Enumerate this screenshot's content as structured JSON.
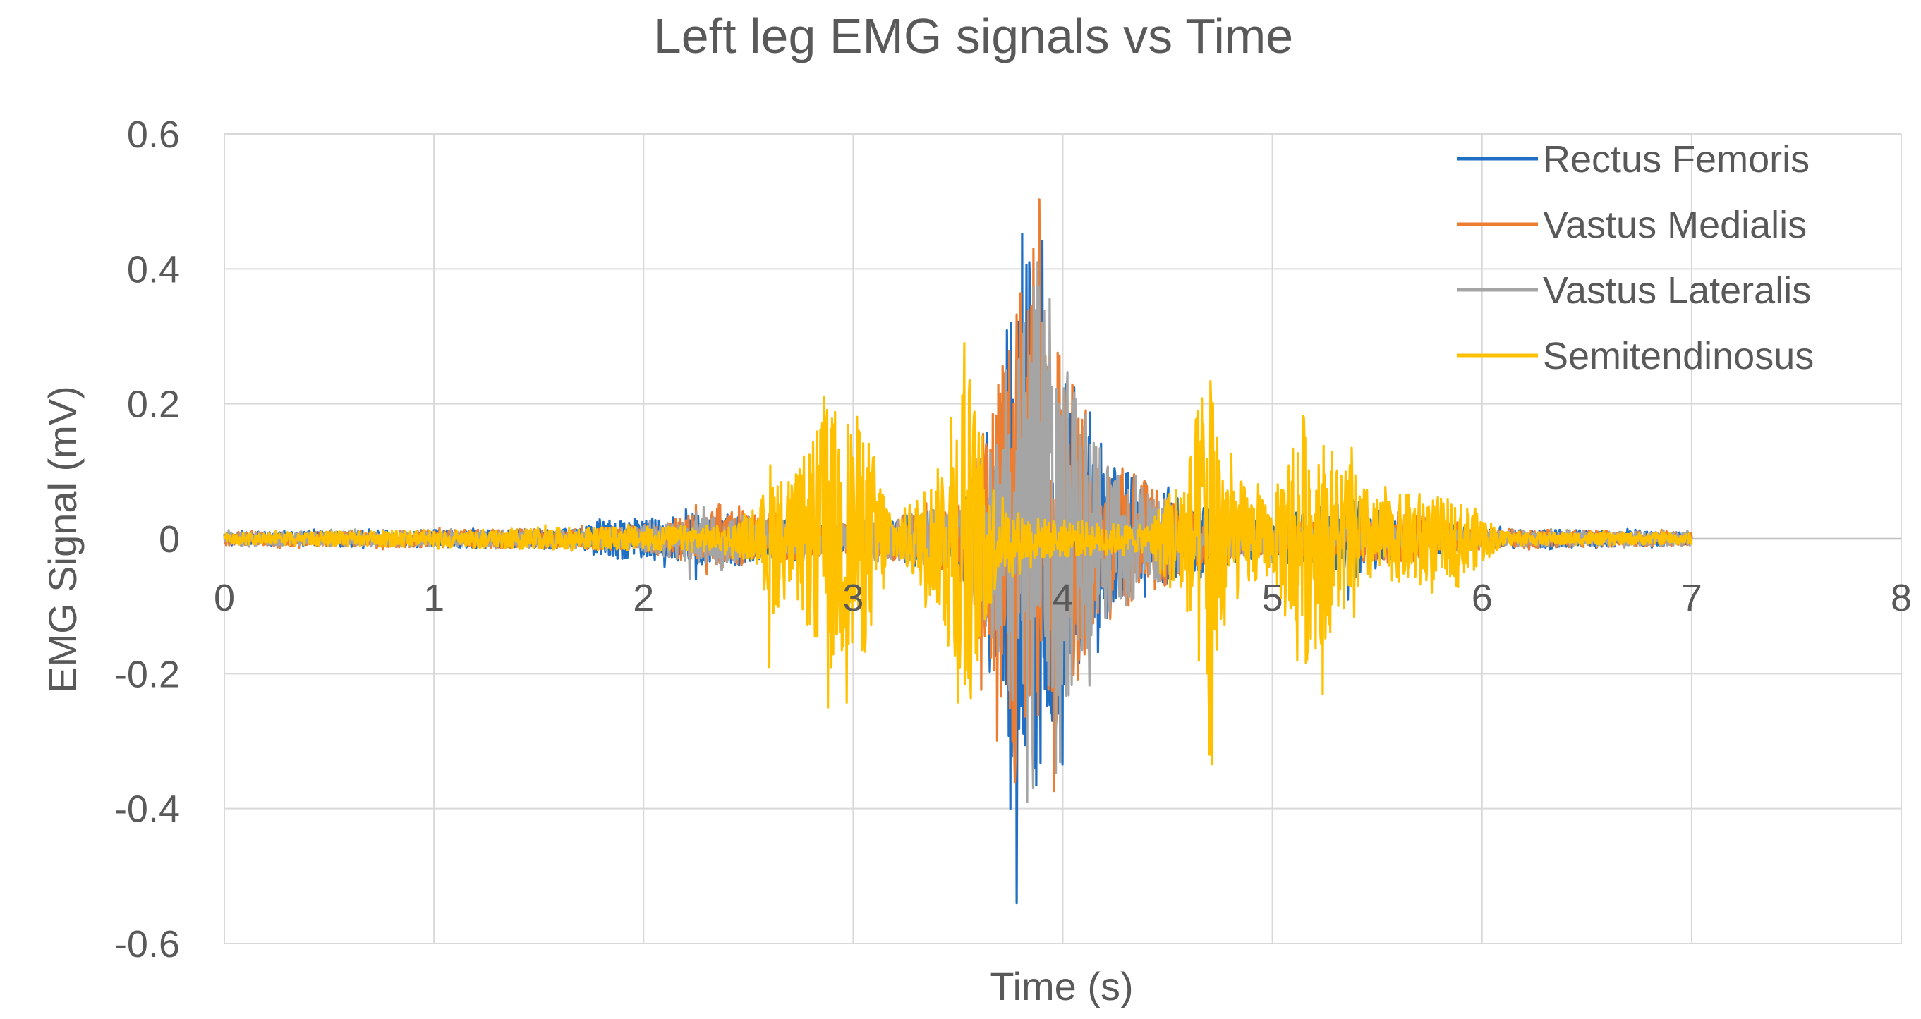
{
  "chart_data": {
    "type": "line",
    "title": "Left leg EMG signals vs Time",
    "xlabel": "Time (s)",
    "ylabel": "EMG Signal (mV)",
    "xlim": [
      0,
      8
    ],
    "ylim": [
      -0.6,
      0.6
    ],
    "x_ticks": [
      0,
      1,
      2,
      3,
      4,
      5,
      6,
      7,
      8
    ],
    "y_ticks": [
      0.6,
      0.4,
      0.2,
      0,
      -0.2,
      -0.4,
      -0.6
    ],
    "x_tick_labels": [
      "0",
      "1",
      "2",
      "3",
      "4",
      "5",
      "6",
      "7",
      "8"
    ],
    "y_tick_labels": [
      "0.6",
      "0.4",
      "0.2",
      "0",
      "-0.2",
      "-0.4",
      "-0.6"
    ],
    "grid": true,
    "legend_position": "top-right",
    "series": [
      {
        "name": "Rectus Femoris",
        "color": "#1f6fc5",
        "envelope": [
          [
            0,
            0.01
          ],
          [
            1.7,
            0.015
          ],
          [
            1.78,
            0.03
          ],
          [
            2.0,
            0.03
          ],
          [
            2.3,
            0.04
          ],
          [
            2.6,
            0.03
          ],
          [
            3.0,
            0.02
          ],
          [
            3.5,
            0.05
          ],
          [
            3.7,
            0.2
          ],
          [
            3.78,
            0.4
          ],
          [
            3.85,
            0.41
          ],
          [
            3.95,
            0.3
          ],
          [
            4.2,
            0.12
          ],
          [
            4.6,
            0.05
          ],
          [
            5.0,
            0.03
          ],
          [
            5.38,
            0.06
          ],
          [
            5.6,
            0.03
          ],
          [
            6.0,
            0.015
          ],
          [
            7.0,
            0.01
          ]
        ],
        "peaks": [
          [
            3.84,
            0.41
          ],
          [
            3.78,
            -0.54
          ],
          [
            3.75,
            -0.4
          ],
          [
            3.95,
            -0.27
          ],
          [
            5.38,
            0.06
          ],
          [
            5.36,
            -0.09
          ],
          [
            2.25,
            -0.06
          ]
        ]
      },
      {
        "name": "Vastus Medialis",
        "color": "#ed7d31",
        "envelope": [
          [
            0,
            0.01
          ],
          [
            1.7,
            0.015
          ],
          [
            2.0,
            0.02
          ],
          [
            2.3,
            0.04
          ],
          [
            2.6,
            0.04
          ],
          [
            3.0,
            0.02
          ],
          [
            3.5,
            0.05
          ],
          [
            3.68,
            0.25
          ],
          [
            3.78,
            0.38
          ],
          [
            3.86,
            0.43
          ],
          [
            3.95,
            0.3
          ],
          [
            4.2,
            0.12
          ],
          [
            4.6,
            0.05
          ],
          [
            5.0,
            0.02
          ],
          [
            5.6,
            0.04
          ],
          [
            6.0,
            0.015
          ],
          [
            7.0,
            0.01
          ]
        ],
        "peaks": [
          [
            3.86,
            0.43
          ],
          [
            3.76,
            -0.3
          ],
          [
            2.25,
            0.05
          ],
          [
            5.6,
            0.04
          ]
        ]
      },
      {
        "name": "Vastus Lateralis",
        "color": "#a5a5a5",
        "envelope": [
          [
            0,
            0.01
          ],
          [
            1.7,
            0.012
          ],
          [
            2.0,
            0.02
          ],
          [
            2.3,
            0.04
          ],
          [
            2.6,
            0.03
          ],
          [
            3.0,
            0.02
          ],
          [
            3.5,
            0.05
          ],
          [
            3.72,
            0.2
          ],
          [
            3.8,
            0.3
          ],
          [
            3.88,
            0.41
          ],
          [
            3.95,
            0.3
          ],
          [
            4.2,
            0.12
          ],
          [
            4.6,
            0.04
          ],
          [
            5.0,
            0.02
          ],
          [
            6.0,
            0.012
          ],
          [
            7.0,
            0.01
          ]
        ],
        "peaks": [
          [
            3.88,
            0.41
          ],
          [
            3.83,
            -0.39
          ],
          [
            2.22,
            -0.06
          ]
        ]
      },
      {
        "name": "Semitendinosus",
        "color": "#ffc000",
        "envelope": [
          [
            0,
            0.008
          ],
          [
            2.4,
            0.02
          ],
          [
            2.55,
            0.04
          ],
          [
            2.6,
            0.12
          ],
          [
            2.7,
            0.08
          ],
          [
            2.88,
            0.2
          ],
          [
            3.05,
            0.18
          ],
          [
            3.2,
            0.03
          ],
          [
            3.4,
            0.1
          ],
          [
            3.53,
            0.29
          ],
          [
            3.62,
            0.15
          ],
          [
            3.7,
            0.05
          ],
          [
            3.9,
            0.03
          ],
          [
            4.4,
            0.02
          ],
          [
            4.6,
            0.12
          ],
          [
            4.7,
            0.3
          ],
          [
            4.8,
            0.1
          ],
          [
            5.0,
            0.05
          ],
          [
            5.12,
            0.2
          ],
          [
            5.25,
            0.15
          ],
          [
            5.5,
            0.06
          ],
          [
            5.7,
            0.07
          ],
          [
            5.95,
            0.05
          ],
          [
            6.1,
            0.01
          ],
          [
            7.0,
            0.008
          ]
        ],
        "peaks": [
          [
            2.86,
            0.21
          ],
          [
            2.6,
            -0.19
          ],
          [
            2.88,
            -0.25
          ],
          [
            3.53,
            0.29
          ],
          [
            4.7,
            -0.32
          ],
          [
            4.67,
            0.17
          ],
          [
            5.15,
            0.18
          ],
          [
            5.24,
            -0.23
          ],
          [
            3.0,
            0.12
          ]
        ]
      }
    ]
  }
}
